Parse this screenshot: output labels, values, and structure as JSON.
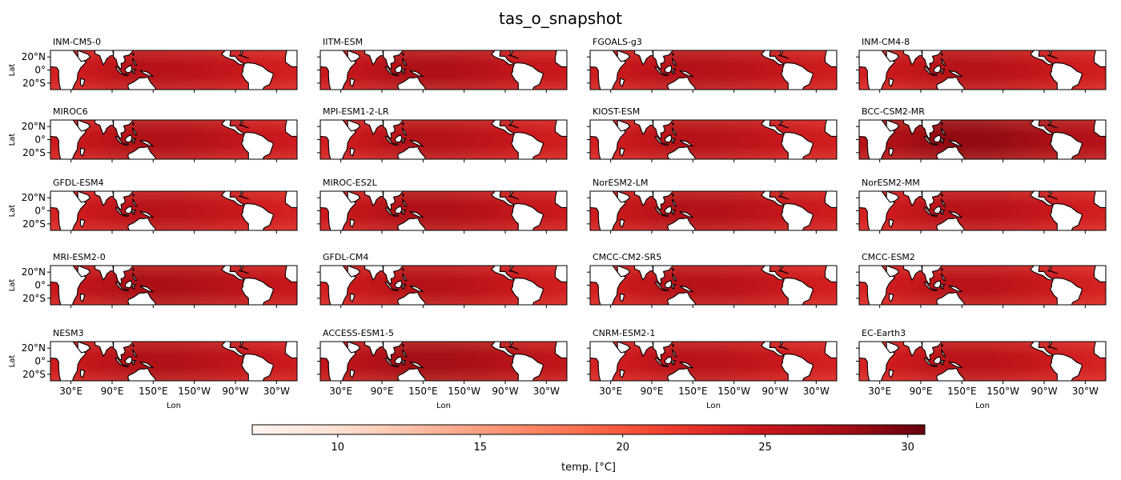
{
  "chart_data": {
    "type": "heatmap",
    "title": "tas_o_snapshot",
    "xlabel": "Lon",
    "ylabel": "Lat",
    "x_ticks": [
      "30°E",
      "90°E",
      "150°E",
      "150°W",
      "90°W",
      "30°W"
    ],
    "x_tick_lon": [
      30,
      90,
      150,
      210,
      270,
      330
    ],
    "xlim_lon": [
      0,
      360
    ],
    "y_ticks": [
      "20°N",
      "0°",
      "20°S"
    ],
    "y_tick_lat": [
      20,
      0,
      -20
    ],
    "ylim_lat": [
      -30,
      30
    ],
    "colormap": "Reds",
    "colorbar": {
      "label": "temp. [°C]",
      "range": [
        7,
        30.6
      ],
      "ticks": [
        "10",
        "15",
        "20",
        "25",
        "30"
      ],
      "tick_values": [
        10,
        15,
        20,
        25,
        30
      ],
      "colors": [
        "#fff5f0",
        "#fee0d2",
        "#fcbba1",
        "#fc9272",
        "#fb6a4a",
        "#ef3b2c",
        "#cb181d",
        "#a50f15",
        "#67000d"
      ]
    },
    "panels": [
      {
        "name": "INM-CM5-0",
        "mean_temp": 25.5
      },
      {
        "name": "IITM-ESM",
        "mean_temp": 26.2
      },
      {
        "name": "FGOALS-g3",
        "mean_temp": 25.8
      },
      {
        "name": "INM-CM4-8",
        "mean_temp": 25.6
      },
      {
        "name": "MIROC6",
        "mean_temp": 26.0
      },
      {
        "name": "MPI-ESM1-2-LR",
        "mean_temp": 25.7
      },
      {
        "name": "KIOST-ESM",
        "mean_temp": 25.6
      },
      {
        "name": "BCC-CSM2-MR",
        "mean_temp": 27.8
      },
      {
        "name": "GFDL-ESM4",
        "mean_temp": 25.4
      },
      {
        "name": "MIROC-ES2L",
        "mean_temp": 26.1
      },
      {
        "name": "NorESM2-LM",
        "mean_temp": 25.9
      },
      {
        "name": "NorESM2-MM",
        "mean_temp": 25.5
      },
      {
        "name": "MRI-ESM2-0",
        "mean_temp": 26.4
      },
      {
        "name": "GFDL-CM4",
        "mean_temp": 25.6
      },
      {
        "name": "CMCC-CM2-SR5",
        "mean_temp": 25.5
      },
      {
        "name": "CMCC-ESM2",
        "mean_temp": 25.3
      },
      {
        "name": "NESM3",
        "mean_temp": 26.0
      },
      {
        "name": "ACCESS-ESM1-5",
        "mean_temp": 26.9
      },
      {
        "name": "CNRM-ESM2-1",
        "mean_temp": 25.4
      },
      {
        "name": "EC-Earth3",
        "mean_temp": 25.3
      }
    ]
  }
}
